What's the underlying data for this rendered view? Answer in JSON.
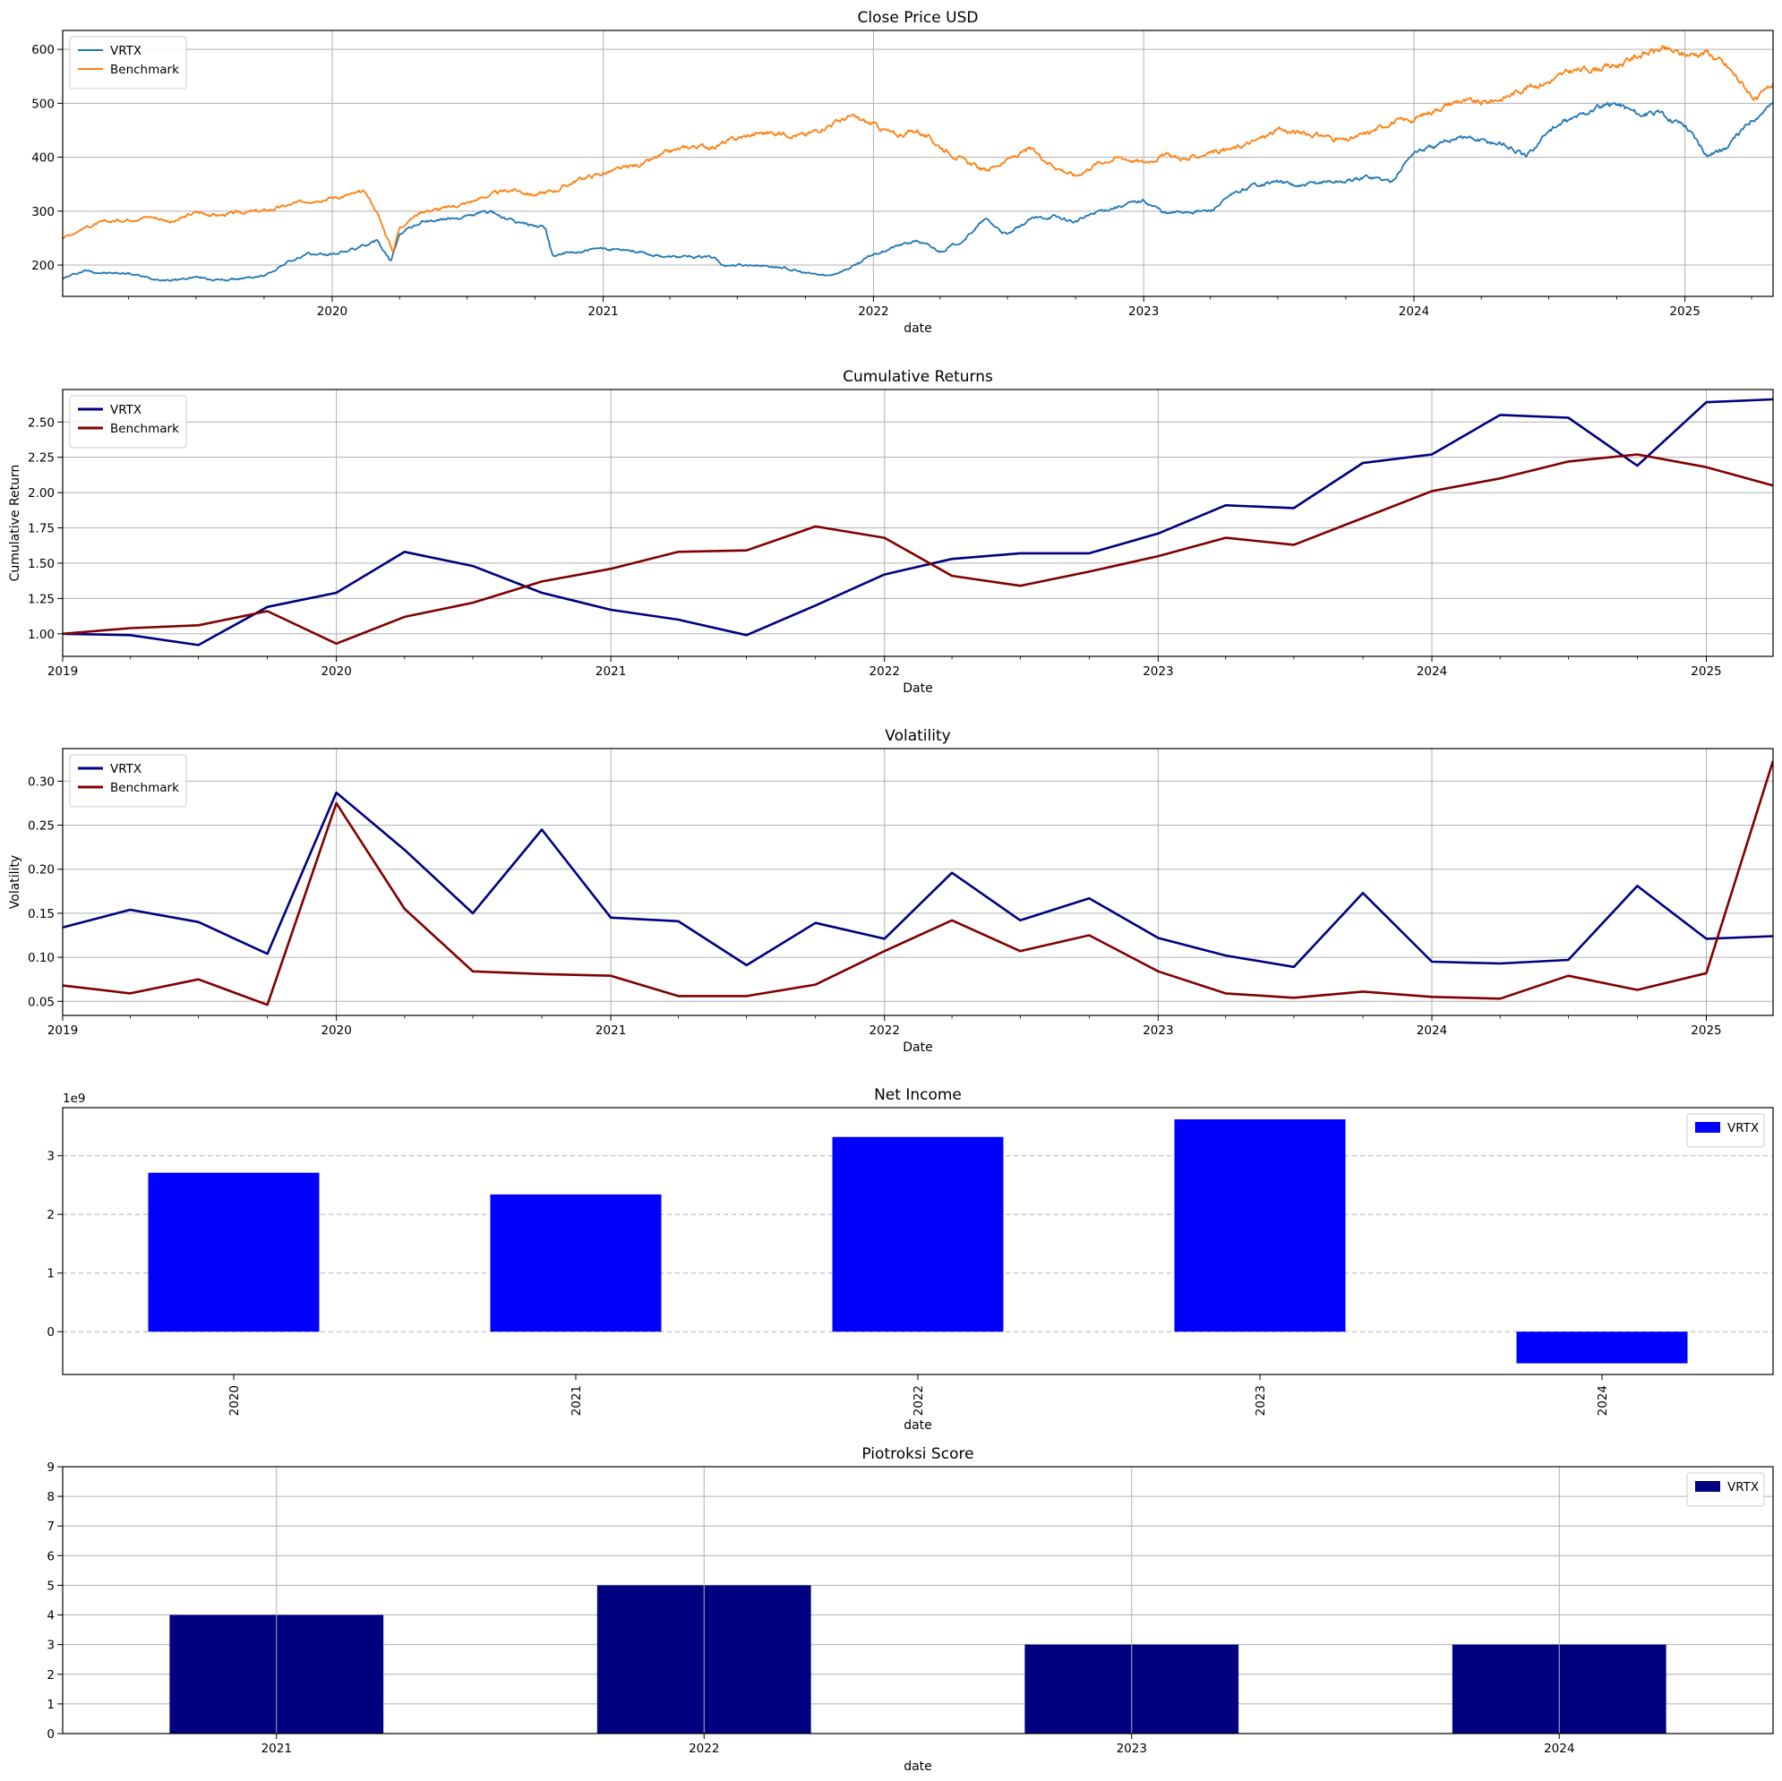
{
  "chart_data": [
    {
      "type": "line",
      "title": "Close Price USD",
      "xlabel": "date",
      "ylabel": "",
      "xlim": [
        "2019-01-02",
        "2025-04-30"
      ],
      "ylim": [
        142,
        635
      ],
      "xticks": [
        "2020",
        "2021",
        "2022",
        "2023",
        "2024",
        "2025"
      ],
      "yticks": [
        200,
        300,
        400,
        500,
        600
      ],
      "grid": true,
      "legend": "top-left",
      "series": [
        {
          "name": "VRTX",
          "color": "#1f77b4",
          "x": [
            "2019-01-02",
            "2019-02-01",
            "2019-03-01",
            "2019-04-01",
            "2019-05-01",
            "2019-06-01",
            "2019-07-01",
            "2019-08-01",
            "2019-09-01",
            "2019-10-01",
            "2019-11-01",
            "2019-12-01",
            "2020-01-01",
            "2020-02-01",
            "2020-03-01",
            "2020-03-20",
            "2020-04-01",
            "2020-05-01",
            "2020-06-01",
            "2020-07-01",
            "2020-08-01",
            "2020-09-01",
            "2020-10-15",
            "2020-10-25",
            "2020-11-01",
            "2020-12-01",
            "2021-01-01",
            "2021-02-01",
            "2021-03-01",
            "2021-04-01",
            "2021-05-01",
            "2021-06-01",
            "2021-06-10",
            "2021-07-01",
            "2021-08-01",
            "2021-09-01",
            "2021-10-01",
            "2021-11-01",
            "2021-12-01",
            "2022-01-01",
            "2022-02-01",
            "2022-03-01",
            "2022-04-01",
            "2022-05-01",
            "2022-06-01",
            "2022-07-01",
            "2022-08-01",
            "2022-09-01",
            "2022-10-01",
            "2022-11-01",
            "2022-12-01",
            "2023-01-01",
            "2023-02-01",
            "2023-03-01",
            "2023-04-01",
            "2023-05-01",
            "2023-06-01",
            "2023-07-01",
            "2023-08-01",
            "2023-09-01",
            "2023-10-01",
            "2023-11-01",
            "2023-12-01",
            "2024-01-01",
            "2024-02-01",
            "2024-03-01",
            "2024-04-01",
            "2024-05-01",
            "2024-06-01",
            "2024-07-01",
            "2024-08-01",
            "2024-09-01",
            "2024-10-01",
            "2024-11-01",
            "2024-12-01",
            "2025-01-01",
            "2025-02-01",
            "2025-03-01",
            "2025-04-01",
            "2025-04-30"
          ],
          "values": [
            175,
            190,
            185,
            185,
            175,
            172,
            178,
            172,
            175,
            180,
            205,
            220,
            220,
            230,
            245,
            205,
            260,
            280,
            285,
            290,
            300,
            280,
            270,
            215,
            220,
            225,
            230,
            230,
            220,
            215,
            215,
            215,
            200,
            200,
            200,
            195,
            185,
            180,
            195,
            220,
            235,
            245,
            225,
            245,
            285,
            255,
            285,
            290,
            280,
            300,
            310,
            320,
            295,
            300,
            300,
            330,
            350,
            355,
            345,
            355,
            355,
            365,
            355,
            410,
            420,
            440,
            430,
            425,
            400,
            450,
            470,
            490,
            500,
            480,
            480,
            460,
            405,
            420,
            470,
            500
          ]
        },
        {
          "name": "Benchmark",
          "color": "#ff7f0e",
          "x": [
            "2019-01-02",
            "2019-02-01",
            "2019-03-01",
            "2019-04-01",
            "2019-05-01",
            "2019-06-01",
            "2019-07-01",
            "2019-08-01",
            "2019-09-01",
            "2019-10-01",
            "2019-11-01",
            "2019-12-01",
            "2020-01-01",
            "2020-02-15",
            "2020-03-01",
            "2020-03-23",
            "2020-04-01",
            "2020-05-01",
            "2020-06-01",
            "2020-07-01",
            "2020-08-01",
            "2020-09-01",
            "2020-10-01",
            "2020-11-01",
            "2020-12-01",
            "2021-01-01",
            "2021-02-01",
            "2021-03-01",
            "2021-04-01",
            "2021-05-01",
            "2021-06-01",
            "2021-07-01",
            "2021-08-01",
            "2021-09-01",
            "2021-10-01",
            "2021-11-01",
            "2021-12-01",
            "2022-01-01",
            "2022-02-01",
            "2022-03-01",
            "2022-04-01",
            "2022-05-01",
            "2022-06-01",
            "2022-07-01",
            "2022-08-01",
            "2022-09-01",
            "2022-10-01",
            "2022-11-01",
            "2022-12-01",
            "2023-01-01",
            "2023-02-01",
            "2023-03-01",
            "2023-04-01",
            "2023-05-01",
            "2023-06-01",
            "2023-07-01",
            "2023-08-01",
            "2023-09-01",
            "2023-10-01",
            "2023-11-01",
            "2023-12-01",
            "2024-01-01",
            "2024-02-01",
            "2024-03-01",
            "2024-04-01",
            "2024-05-01",
            "2024-06-01",
            "2024-07-01",
            "2024-08-01",
            "2024-09-01",
            "2024-10-01",
            "2024-11-01",
            "2024-12-01",
            "2025-01-01",
            "2025-02-01",
            "2025-03-01",
            "2025-04-08",
            "2025-04-30"
          ],
          "values": [
            250,
            270,
            280,
            285,
            290,
            280,
            298,
            292,
            298,
            300,
            310,
            320,
            325,
            335,
            300,
            225,
            270,
            300,
            305,
            315,
            330,
            340,
            330,
            340,
            360,
            370,
            380,
            390,
            410,
            420,
            420,
            435,
            445,
            445,
            440,
            460,
            475,
            460,
            440,
            450,
            420,
            395,
            375,
            395,
            415,
            385,
            365,
            390,
            400,
            390,
            405,
            395,
            410,
            415,
            430,
            450,
            445,
            440,
            430,
            445,
            465,
            470,
            490,
            505,
            500,
            510,
            530,
            540,
            560,
            565,
            570,
            590,
            600,
            590,
            595,
            565,
            505,
            535
          ]
        }
      ]
    },
    {
      "type": "line",
      "title": "Cumulative Returns",
      "xlabel": "Date",
      "ylabel": "Cumulative Return",
      "xlim": [
        "2019-01-01",
        "2025-03-31"
      ],
      "ylim": [
        0.84,
        2.73
      ],
      "xticks": [
        "2019",
        "2020",
        "2021",
        "2022",
        "2023",
        "2024",
        "2025"
      ],
      "yticks": [
        "1.00",
        "1.25",
        "1.50",
        "1.75",
        "2.00",
        "2.25",
        "2.50"
      ],
      "grid": true,
      "legend": "top-left",
      "x": [
        "2019-01-01",
        "2019-04-01",
        "2019-07-01",
        "2019-10-01",
        "2020-01-01",
        "2020-04-01",
        "2020-07-01",
        "2020-10-01",
        "2021-01-01",
        "2021-04-01",
        "2021-07-01",
        "2021-10-01",
        "2022-01-01",
        "2022-04-01",
        "2022-07-01",
        "2022-10-01",
        "2023-01-01",
        "2023-04-01",
        "2023-07-01",
        "2023-10-01",
        "2024-01-01",
        "2024-04-01",
        "2024-07-01",
        "2024-10-01",
        "2025-01-01",
        "2025-03-31"
      ],
      "series": [
        {
          "name": "VRTX",
          "color": "#000080",
          "values": [
            1.0,
            0.99,
            0.92,
            1.19,
            1.29,
            1.58,
            1.48,
            1.29,
            1.17,
            1.1,
            0.99,
            1.2,
            1.42,
            1.53,
            1.57,
            1.57,
            1.71,
            1.91,
            1.89,
            2.21,
            2.27,
            2.55,
            2.53,
            2.19,
            2.64,
            2.66
          ]
        },
        {
          "name": "Benchmark",
          "color": "#800000",
          "values": [
            1.0,
            1.04,
            1.06,
            1.16,
            0.93,
            1.12,
            1.22,
            1.37,
            1.46,
            1.58,
            1.59,
            1.76,
            1.68,
            1.41,
            1.34,
            1.44,
            1.55,
            1.68,
            1.63,
            1.82,
            2.01,
            2.1,
            2.22,
            2.27,
            2.18,
            2.05
          ]
        }
      ]
    },
    {
      "type": "line",
      "title": "Volatility",
      "xlabel": "Date",
      "ylabel": "Volatility",
      "xlim": [
        "2019-01-01",
        "2025-03-31"
      ],
      "ylim": [
        0.034,
        0.337
      ],
      "xticks": [
        "2019",
        "2020",
        "2021",
        "2022",
        "2023",
        "2024",
        "2025"
      ],
      "yticks": [
        "0.05",
        "0.10",
        "0.15",
        "0.20",
        "0.25",
        "0.30"
      ],
      "grid": true,
      "legend": "top-left",
      "x": [
        "2019-01-01",
        "2019-04-01",
        "2019-07-01",
        "2019-10-01",
        "2020-01-01",
        "2020-04-01",
        "2020-07-01",
        "2020-10-01",
        "2021-01-01",
        "2021-04-01",
        "2021-07-01",
        "2021-10-01",
        "2022-01-01",
        "2022-04-01",
        "2022-07-01",
        "2022-10-01",
        "2023-01-01",
        "2023-04-01",
        "2023-07-01",
        "2023-10-01",
        "2024-01-01",
        "2024-04-01",
        "2024-07-01",
        "2024-10-01",
        "2025-01-01",
        "2025-03-31"
      ],
      "series": [
        {
          "name": "VRTX",
          "color": "#000080",
          "values": [
            0.134,
            0.154,
            0.14,
            0.104,
            0.287,
            0.222,
            0.15,
            0.245,
            0.145,
            0.141,
            0.091,
            0.139,
            0.121,
            0.196,
            0.142,
            0.167,
            0.122,
            0.102,
            0.089,
            0.173,
            0.095,
            0.093,
            0.097,
            0.181,
            0.121,
            0.124
          ]
        },
        {
          "name": "Benchmark",
          "color": "#800000",
          "values": [
            0.068,
            0.059,
            0.075,
            0.046,
            0.275,
            0.155,
            0.084,
            0.081,
            0.079,
            0.056,
            0.056,
            0.069,
            0.107,
            0.142,
            0.107,
            0.125,
            0.084,
            0.059,
            0.054,
            0.061,
            0.055,
            0.053,
            0.079,
            0.063,
            0.082,
            0.323
          ]
        }
      ]
    },
    {
      "type": "bar",
      "title": "Net Income",
      "xlabel": "date",
      "ylabel": "",
      "exponent_label": "1e9",
      "categories": [
        "2020",
        "2021",
        "2022",
        "2023",
        "2024"
      ],
      "ylim": [
        -0.73,
        3.82
      ],
      "yticks": [
        "0",
        "1",
        "2",
        "3"
      ],
      "grid": "y-dashed",
      "legend": "top-right",
      "series": [
        {
          "name": "VRTX",
          "color": "#0000ff",
          "values": [
            2.71,
            2.34,
            3.32,
            3.62,
            -0.54
          ]
        }
      ]
    },
    {
      "type": "bar",
      "title": "Piotroksi Score",
      "xlabel": "date",
      "ylabel": "",
      "categories": [
        "2021",
        "2022",
        "2023",
        "2024"
      ],
      "ylim": [
        0,
        9
      ],
      "yticks": [
        "0",
        "1",
        "2",
        "3",
        "4",
        "5",
        "6",
        "7",
        "8",
        "9"
      ],
      "grid": true,
      "legend": "top-right",
      "series": [
        {
          "name": "VRTX",
          "color": "#000080",
          "values": [
            4,
            5,
            3,
            3
          ]
        }
      ]
    }
  ]
}
